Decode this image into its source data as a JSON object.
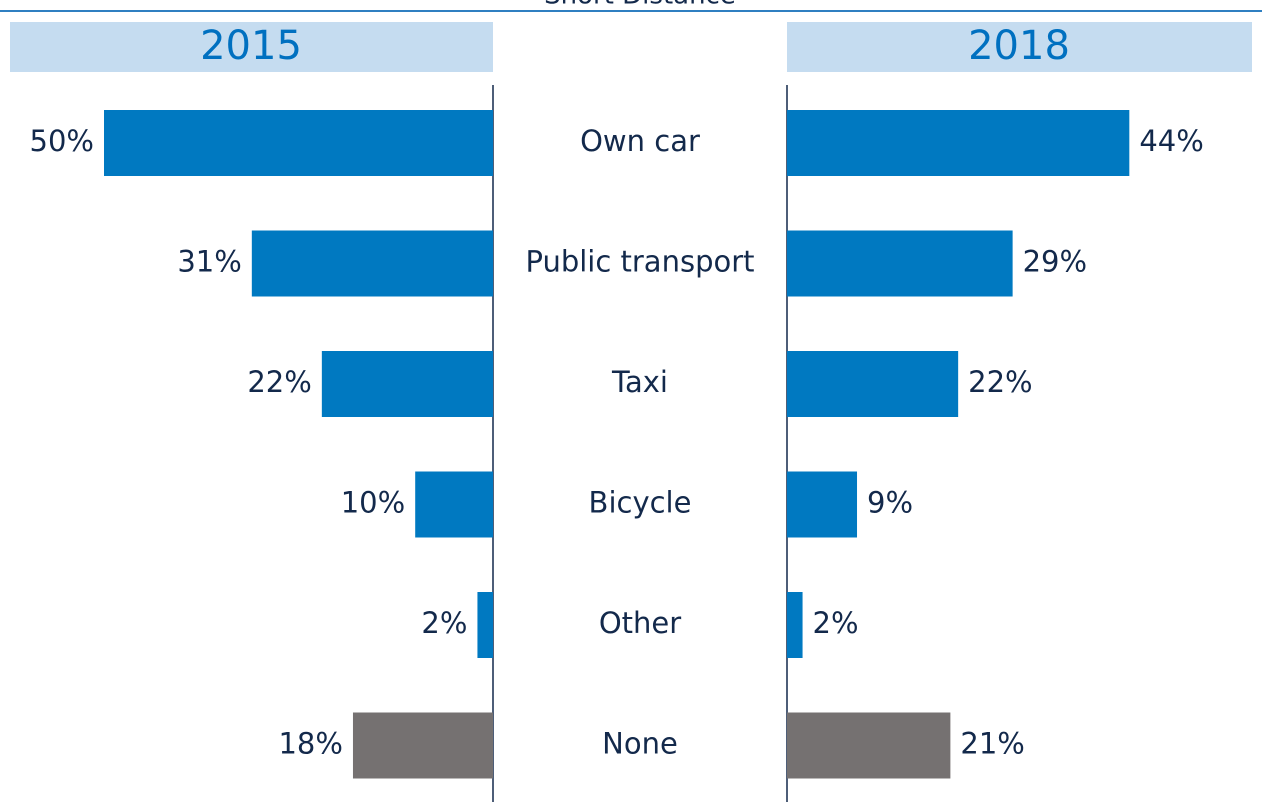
{
  "chart_data": {
    "type": "butterfly-bar",
    "title": "Short Distance",
    "categories": [
      "Own car",
      "Public transport",
      "Taxi",
      "Bicycle",
      "Other",
      "None"
    ],
    "xlim": [
      0,
      50
    ],
    "series": [
      {
        "name": "2015",
        "values": [
          50,
          31,
          22,
          10,
          2,
          18
        ],
        "value_labels": [
          "50%",
          "31%",
          "22%",
          "10%",
          "2%",
          "18%"
        ],
        "colors": [
          "#0079c1",
          "#0079c1",
          "#0079c1",
          "#0079c1",
          "#0079c1",
          "#757171"
        ]
      },
      {
        "name": "2018",
        "values": [
          44,
          29,
          22,
          9,
          2,
          21
        ],
        "value_labels": [
          "44%",
          "29%",
          "22%",
          "9%",
          "2%",
          "21%"
        ],
        "colors": [
          "#0079c1",
          "#0079c1",
          "#0079c1",
          "#0079c1",
          "#0079c1",
          "#757171"
        ]
      }
    ]
  }
}
